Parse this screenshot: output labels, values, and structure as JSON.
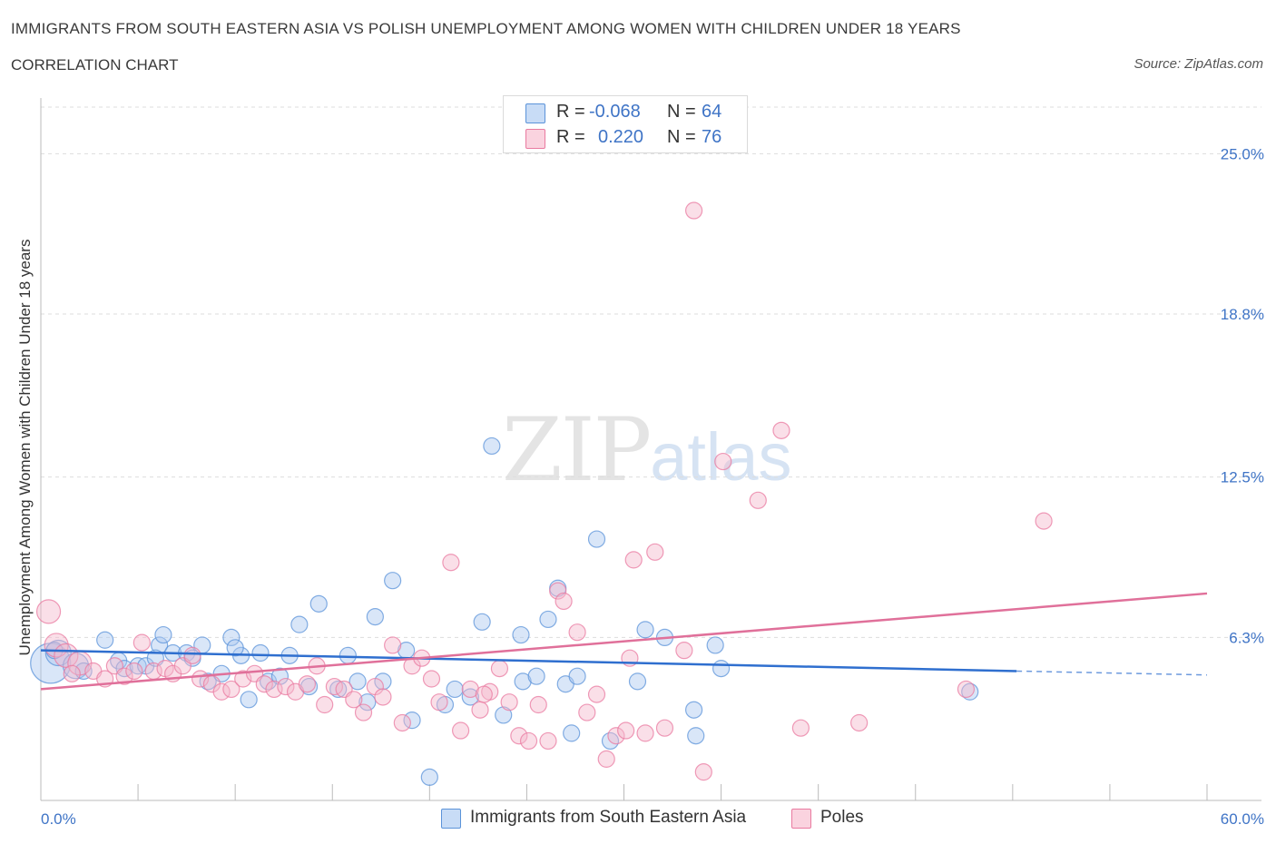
{
  "title": "IMMIGRANTS FROM SOUTH EASTERN ASIA VS POLISH UNEMPLOYMENT AMONG WOMEN WITH CHILDREN UNDER 18 YEARS",
  "subtitle": "CORRELATION CHART",
  "source": "Source: ZipAtlas.com",
  "watermark": {
    "zip": "ZIP",
    "atlas": "atlas"
  },
  "legend": {
    "rows": [
      {
        "r_label": "R = ",
        "r_value": "-0.068",
        "n_label": "N = ",
        "n_value": "64",
        "color": "#aac8f0"
      },
      {
        "r_label": "R = ",
        "r_value": "0.220",
        "n_label": "N = ",
        "n_value": "76",
        "color": "#f5b8cb"
      }
    ]
  },
  "bottom_legend": [
    {
      "label": "Immigrants from South Eastern Asia",
      "color": "#aac8f0"
    },
    {
      "label": "Poles",
      "color": "#f5b8cb"
    }
  ],
  "colors": {
    "blue": "#5b93d9",
    "blue_fill": "#aac8f0",
    "blue_line": "#2f6fcf",
    "pink": "#e97aa0",
    "pink_fill": "#f5b8cb",
    "pink_line": "#e0709a",
    "axis_text": "#3f74c6"
  },
  "chart_data": {
    "type": "scatter",
    "title": "IMMIGRANTS FROM SOUTH EASTERN ASIA VS POLISH UNEMPLOYMENT AMONG WOMEN WITH CHILDREN UNDER 18 YEARS",
    "ylabel": "Unemployment Among Women with Children Under 18 years",
    "xlabel": "",
    "xlim": [
      0,
      60
    ],
    "ylim": [
      0,
      26.8
    ],
    "x_tick_labels": [
      {
        "value": 0,
        "label": "0.0%"
      },
      {
        "value": 60,
        "label": "60.0%"
      }
    ],
    "y_ticks": [
      {
        "value": 6.3,
        "label": "6.3%"
      },
      {
        "value": 12.5,
        "label": "12.5%"
      },
      {
        "value": 18.8,
        "label": "18.8%"
      },
      {
        "value": 25.0,
        "label": "25.0%"
      }
    ],
    "grid": true,
    "series": [
      {
        "name": "Immigrants from South Eastern Asia",
        "points": [
          [
            0.5,
            5.3,
            22
          ],
          [
            0.9,
            5.7,
            14
          ],
          [
            1.8,
            5.2,
            14
          ],
          [
            3.3,
            6.2,
            9
          ],
          [
            4.0,
            5.4,
            9
          ],
          [
            4.3,
            5.1,
            9
          ],
          [
            5.0,
            5.2,
            9
          ],
          [
            5.4,
            5.2,
            9
          ],
          [
            6.1,
            6.0,
            9
          ],
          [
            6.3,
            6.4,
            9
          ],
          [
            6.8,
            5.7,
            9
          ],
          [
            7.5,
            5.7,
            9
          ],
          [
            7.8,
            5.5,
            9
          ],
          [
            8.3,
            6.0,
            9
          ],
          [
            8.6,
            4.6,
            9
          ],
          [
            9.3,
            4.9,
            9
          ],
          [
            9.8,
            6.3,
            9
          ],
          [
            10.3,
            5.6,
            9
          ],
          [
            10.7,
            3.9,
            9
          ],
          [
            11.3,
            5.7,
            9
          ],
          [
            11.7,
            4.6,
            9
          ],
          [
            12.3,
            4.8,
            9
          ],
          [
            12.8,
            5.6,
            9
          ],
          [
            13.3,
            6.8,
            9
          ],
          [
            13.8,
            4.4,
            9
          ],
          [
            14.3,
            7.6,
            9
          ],
          [
            15.3,
            4.3,
            9
          ],
          [
            15.8,
            5.6,
            9
          ],
          [
            16.3,
            4.6,
            9
          ],
          [
            16.8,
            3.8,
            9
          ],
          [
            17.2,
            7.1,
            9
          ],
          [
            17.6,
            4.6,
            9
          ],
          [
            18.1,
            8.5,
            9
          ],
          [
            18.8,
            5.8,
            9
          ],
          [
            19.1,
            3.1,
            9
          ],
          [
            20.0,
            0.9,
            9
          ],
          [
            20.8,
            3.7,
            9
          ],
          [
            21.3,
            4.3,
            9
          ],
          [
            22.1,
            4.0,
            9
          ],
          [
            22.7,
            6.9,
            9
          ],
          [
            23.2,
            13.7,
            9
          ],
          [
            23.8,
            3.3,
            9
          ],
          [
            24.7,
            6.4,
            9
          ],
          [
            24.8,
            4.6,
            9
          ],
          [
            25.5,
            4.8,
            9
          ],
          [
            26.1,
            7.0,
            9
          ],
          [
            26.6,
            8.2,
            9
          ],
          [
            27.0,
            4.5,
            9
          ],
          [
            27.3,
            2.6,
            9
          ],
          [
            27.6,
            4.8,
            9
          ],
          [
            28.6,
            10.1,
            9
          ],
          [
            29.3,
            2.3,
            9
          ],
          [
            30.7,
            4.6,
            9
          ],
          [
            31.1,
            6.6,
            9
          ],
          [
            32.1,
            6.3,
            9
          ],
          [
            33.6,
            3.5,
            9
          ],
          [
            33.7,
            2.5,
            9
          ],
          [
            34.7,
            6.0,
            9
          ],
          [
            35.0,
            5.1,
            9
          ],
          [
            47.8,
            4.2,
            9
          ],
          [
            0.7,
            5.8,
            9
          ],
          [
            2.2,
            5.0,
            9
          ],
          [
            5.9,
            5.5,
            9
          ],
          [
            10.0,
            5.9,
            9
          ]
        ]
      },
      {
        "name": "Poles",
        "points": [
          [
            0.4,
            7.3,
            13
          ],
          [
            0.8,
            6.0,
            13
          ],
          [
            1.3,
            5.6,
            13
          ],
          [
            2.0,
            5.3,
            13
          ],
          [
            2.7,
            5.0,
            9
          ],
          [
            3.3,
            4.7,
            9
          ],
          [
            3.8,
            5.2,
            9
          ],
          [
            4.3,
            4.8,
            9
          ],
          [
            4.8,
            5.0,
            9
          ],
          [
            5.2,
            6.1,
            9
          ],
          [
            5.8,
            5.0,
            9
          ],
          [
            6.4,
            5.1,
            9
          ],
          [
            6.8,
            4.9,
            9
          ],
          [
            7.3,
            5.2,
            9
          ],
          [
            7.8,
            5.6,
            9
          ],
          [
            8.2,
            4.7,
            9
          ],
          [
            8.8,
            4.5,
            9
          ],
          [
            9.3,
            4.2,
            9
          ],
          [
            9.8,
            4.3,
            9
          ],
          [
            10.4,
            4.7,
            9
          ],
          [
            11.0,
            4.9,
            9
          ],
          [
            11.5,
            4.5,
            9
          ],
          [
            12.0,
            4.3,
            9
          ],
          [
            12.6,
            4.4,
            9
          ],
          [
            13.1,
            4.2,
            9
          ],
          [
            13.7,
            4.5,
            9
          ],
          [
            14.2,
            5.2,
            9
          ],
          [
            14.6,
            3.7,
            9
          ],
          [
            15.1,
            4.4,
            9
          ],
          [
            15.6,
            4.3,
            9
          ],
          [
            16.1,
            3.9,
            9
          ],
          [
            16.6,
            3.4,
            9
          ],
          [
            17.2,
            4.4,
            9
          ],
          [
            17.6,
            4.0,
            9
          ],
          [
            18.1,
            6.0,
            9
          ],
          [
            18.6,
            3.0,
            9
          ],
          [
            19.1,
            5.2,
            9
          ],
          [
            19.6,
            5.5,
            9
          ],
          [
            20.1,
            4.7,
            9
          ],
          [
            20.5,
            3.8,
            9
          ],
          [
            21.1,
            9.2,
            9
          ],
          [
            21.6,
            2.7,
            9
          ],
          [
            22.1,
            4.3,
            9
          ],
          [
            22.6,
            3.5,
            9
          ],
          [
            23.1,
            4.2,
            9
          ],
          [
            23.6,
            5.1,
            9
          ],
          [
            24.1,
            3.8,
            9
          ],
          [
            24.6,
            2.5,
            9
          ],
          [
            25.1,
            2.3,
            9
          ],
          [
            25.6,
            3.7,
            9
          ],
          [
            26.1,
            2.3,
            9
          ],
          [
            26.6,
            8.1,
            9
          ],
          [
            26.9,
            7.7,
            9
          ],
          [
            27.6,
            6.5,
            9
          ],
          [
            28.1,
            3.4,
            9
          ],
          [
            28.6,
            4.1,
            9
          ],
          [
            29.1,
            1.6,
            9
          ],
          [
            29.6,
            2.5,
            9
          ],
          [
            30.1,
            2.7,
            9
          ],
          [
            30.5,
            9.3,
            9
          ],
          [
            31.1,
            2.6,
            9
          ],
          [
            31.6,
            9.6,
            9
          ],
          [
            32.1,
            2.8,
            9
          ],
          [
            33.1,
            5.8,
            9
          ],
          [
            33.6,
            22.8,
            9
          ],
          [
            34.1,
            1.1,
            9
          ],
          [
            35.1,
            13.1,
            9
          ],
          [
            36.9,
            11.6,
            9
          ],
          [
            38.1,
            14.3,
            9
          ],
          [
            39.1,
            2.8,
            9
          ],
          [
            42.1,
            3.0,
            9
          ],
          [
            47.6,
            4.3,
            9
          ],
          [
            51.6,
            10.8,
            9
          ],
          [
            30.3,
            5.5,
            9
          ],
          [
            22.8,
            4.1,
            9
          ],
          [
            1.6,
            4.9,
            9
          ]
        ]
      }
    ],
    "trend_lines": [
      {
        "series": "Immigrants from South Eastern Asia",
        "x0": 0,
        "y0": 5.8,
        "x1": 50.2,
        "y1": 5.0,
        "dashed_to_x": 60,
        "dashed_to_y": 4.85
      },
      {
        "series": "Poles",
        "x0": 0,
        "y0": 4.3,
        "x1": 60,
        "y1": 8.0
      }
    ]
  }
}
